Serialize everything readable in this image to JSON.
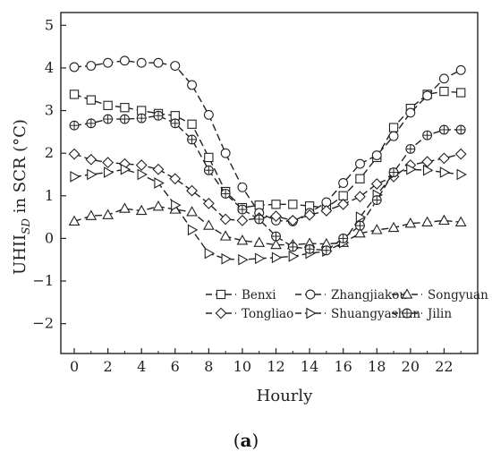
{
  "chart_data": {
    "type": "line",
    "xlabel": "Hourly",
    "ylabel_main": "UHII",
    "ylabel_sub": "SD",
    "ylabel_rest": " in SCR (°C)",
    "x": [
      0,
      1,
      2,
      3,
      4,
      5,
      6,
      7,
      8,
      9,
      10,
      11,
      12,
      13,
      14,
      15,
      16,
      17,
      18,
      19,
      20,
      21,
      22,
      23
    ],
    "xlim": [
      -0.8,
      24
    ],
    "ylim": [
      -2.7,
      5.3
    ],
    "xticks": [
      0,
      2,
      4,
      6,
      8,
      10,
      12,
      14,
      16,
      18,
      20,
      22
    ],
    "yticks": [
      -2,
      -1,
      0,
      1,
      2,
      3,
      4,
      5
    ],
    "legend_position": "lower-right",
    "series": [
      {
        "name": "Benxi",
        "marker": "square",
        "values": [
          3.38,
          3.25,
          3.12,
          3.07,
          3.0,
          2.93,
          2.88,
          2.68,
          1.9,
          1.1,
          0.72,
          0.78,
          0.8,
          0.8,
          0.76,
          0.72,
          1.0,
          1.4,
          1.9,
          2.6,
          3.05,
          3.38,
          3.45,
          3.42
        ]
      },
      {
        "name": "Zhangjiakou",
        "marker": "circle",
        "values": [
          4.02,
          4.05,
          4.12,
          4.17,
          4.12,
          4.12,
          4.05,
          3.6,
          2.9,
          2.0,
          1.2,
          0.6,
          0.42,
          0.4,
          0.6,
          0.85,
          1.3,
          1.75,
          1.95,
          2.4,
          2.95,
          3.35,
          3.75,
          3.95
        ]
      },
      {
        "name": "Songyuan",
        "marker": "triangle-up",
        "values": [
          0.4,
          0.53,
          0.55,
          0.7,
          0.65,
          0.75,
          0.68,
          0.62,
          0.3,
          0.05,
          -0.05,
          -0.1,
          -0.15,
          -0.15,
          -0.12,
          -0.13,
          -0.1,
          0.12,
          0.2,
          0.25,
          0.35,
          0.38,
          0.42,
          0.38
        ]
      },
      {
        "name": "Tongliao",
        "marker": "diamond",
        "values": [
          1.98,
          1.85,
          1.78,
          1.75,
          1.72,
          1.62,
          1.4,
          1.12,
          0.82,
          0.45,
          0.42,
          0.48,
          0.52,
          0.42,
          0.55,
          0.65,
          0.8,
          0.98,
          1.28,
          1.45,
          1.72,
          1.8,
          1.88,
          1.98
        ]
      },
      {
        "name": "Shuangyashan",
        "marker": "triangle-right",
        "values": [
          1.45,
          1.5,
          1.55,
          1.62,
          1.5,
          1.3,
          0.78,
          0.2,
          -0.35,
          -0.48,
          -0.5,
          -0.47,
          -0.45,
          -0.42,
          -0.35,
          -0.3,
          -0.1,
          0.5,
          1.02,
          1.52,
          1.62,
          1.6,
          1.55,
          1.5
        ]
      },
      {
        "name": "Jilin",
        "marker": "circle-cross",
        "values": [
          2.65,
          2.7,
          2.8,
          2.8,
          2.82,
          2.88,
          2.7,
          2.32,
          1.6,
          1.05,
          0.68,
          0.45,
          0.05,
          -0.2,
          -0.25,
          -0.28,
          0.0,
          0.3,
          0.9,
          1.55,
          2.1,
          2.42,
          2.55,
          2.55
        ]
      }
    ]
  },
  "caption": {
    "paren_open": "(",
    "letter": "a",
    "paren_close": ")"
  }
}
